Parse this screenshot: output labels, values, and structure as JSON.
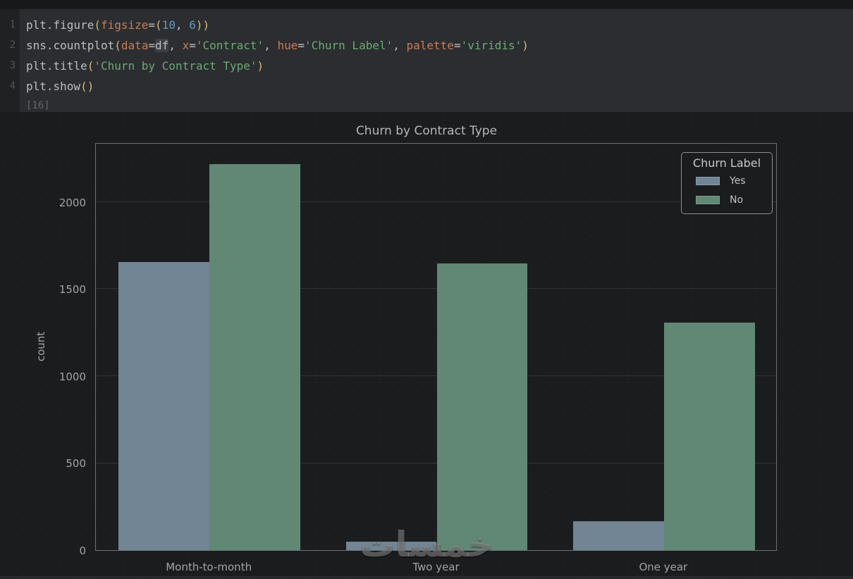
{
  "editor": {
    "execution_count": "[16]",
    "lines": [
      {
        "number": "1",
        "tokens": [
          [
            "plain",
            "plt.figure"
          ],
          [
            "paren",
            "("
          ],
          [
            "kwarg",
            "figsize"
          ],
          [
            "plain",
            "="
          ],
          [
            "paren",
            "("
          ],
          [
            "num",
            "10"
          ],
          [
            "plain",
            ", "
          ],
          [
            "num",
            "6"
          ],
          [
            "paren",
            "))"
          ]
        ]
      },
      {
        "number": "2",
        "tokens": [
          [
            "plain",
            "sns.countplot"
          ],
          [
            "paren",
            "("
          ],
          [
            "kwarg",
            "data"
          ],
          [
            "plain",
            "="
          ],
          [
            "varhl",
            "df"
          ],
          [
            "plain",
            ", "
          ],
          [
            "kwarg",
            "x"
          ],
          [
            "plain",
            "="
          ],
          [
            "str",
            "'Contract'"
          ],
          [
            "plain",
            ", "
          ],
          [
            "kwarg",
            "hue"
          ],
          [
            "plain",
            "="
          ],
          [
            "str",
            "'Churn Label'"
          ],
          [
            "plain",
            ", "
          ],
          [
            "kwarg",
            "palette"
          ],
          [
            "plain",
            "="
          ],
          [
            "str",
            "'viridis'"
          ],
          [
            "paren",
            ")"
          ]
        ]
      },
      {
        "number": "3",
        "tokens": [
          [
            "plain",
            "plt.title"
          ],
          [
            "paren",
            "("
          ],
          [
            "str",
            "'Churn by Contract Type'"
          ],
          [
            "paren",
            ")"
          ]
        ]
      },
      {
        "number": "4",
        "tokens": [
          [
            "plain",
            "plt.show"
          ],
          [
            "paren",
            "()"
          ]
        ]
      }
    ]
  },
  "chart_data": {
    "type": "bar",
    "title": "Churn by Contract Type",
    "xlabel": "",
    "ylabel": "count",
    "categories": [
      "Month-to-month",
      "Two year",
      "One year"
    ],
    "series": [
      {
        "name": "Yes",
        "color": "#718594",
        "values": [
          1655,
          48,
          166
        ]
      },
      {
        "name": "No",
        "color": "#618875",
        "values": [
          2220,
          1647,
          1307
        ]
      }
    ],
    "yticks": [
      0,
      500,
      1000,
      1500,
      2000
    ],
    "ylim": [
      0,
      2344
    ],
    "grid": true,
    "legend_title": "Churn Label",
    "legend_position": "upper right"
  },
  "watermark_text": "خمسات",
  "colors": {
    "series_yes": "#718594",
    "series_no": "#618875",
    "code_background": "#2b2d30",
    "output_background": "#1b1c1e",
    "string_green": "#6aab73",
    "kwarg_orange": "#c87d55",
    "number_blue": "#6897bb"
  }
}
